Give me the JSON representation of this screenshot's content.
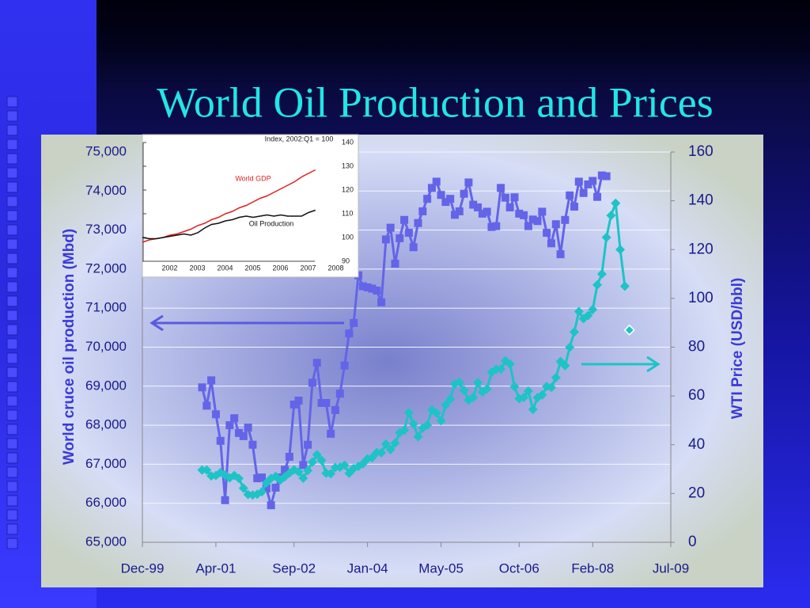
{
  "chart_data": [
    {
      "type": "line",
      "title": "World Oil Production and Prices",
      "ylabel": "World cruce oil production (Mbd)",
      "y2label": "WTI Price (USD/bbl)",
      "xlim": [
        "1999-12",
        "2009-07"
      ],
      "xticks": [
        {
          "value": "1999-12",
          "label": "Dec-99"
        },
        {
          "value": "2001-04",
          "label": "Apr-01"
        },
        {
          "value": "2002-09",
          "label": "Sep-02"
        },
        {
          "value": "2004-01",
          "label": "Jan-04"
        },
        {
          "value": "2005-05",
          "label": "May-05"
        },
        {
          "value": "2006-10",
          "label": "Oct-06"
        },
        {
          "value": "2008-02",
          "label": "Feb-08"
        },
        {
          "value": "2009-07",
          "label": "Jul-09"
        }
      ],
      "ylim": [
        65000,
        75000
      ],
      "yticks": [
        {
          "value": 65000,
          "label": "65,000"
        },
        {
          "value": 66000,
          "label": "66,000"
        },
        {
          "value": 67000,
          "label": "67,000"
        },
        {
          "value": 68000,
          "label": "68,000"
        },
        {
          "value": 69000,
          "label": "69,000"
        },
        {
          "value": 70000,
          "label": "70,000"
        },
        {
          "value": 71000,
          "label": "71,000"
        },
        {
          "value": 72000,
          "label": "72,000"
        },
        {
          "value": 73000,
          "label": "73,000"
        },
        {
          "value": 74000,
          "label": "74,000"
        },
        {
          "value": 75000,
          "label": "75,000"
        }
      ],
      "y2lim": [
        0,
        160
      ],
      "y2ticks": [
        0,
        20,
        40,
        60,
        80,
        100,
        120,
        140,
        160
      ],
      "grid": true,
      "x": [
        "2001-01",
        "2001-02",
        "2001-03",
        "2001-04",
        "2001-05",
        "2001-06",
        "2001-07",
        "2001-08",
        "2001-09",
        "2001-10",
        "2001-11",
        "2001-12",
        "2002-01",
        "2002-02",
        "2002-03",
        "2002-04",
        "2002-05",
        "2002-06",
        "2002-07",
        "2002-08",
        "2002-09",
        "2002-10",
        "2002-11",
        "2002-12",
        "2003-01",
        "2003-02",
        "2003-03",
        "2003-04",
        "2003-05",
        "2003-06",
        "2003-07",
        "2003-08",
        "2003-09",
        "2003-10",
        "2003-11",
        "2003-12",
        "2004-01",
        "2004-02",
        "2004-03",
        "2004-04",
        "2004-05",
        "2004-06",
        "2004-07",
        "2004-08",
        "2004-09",
        "2004-10",
        "2004-11",
        "2004-12",
        "2005-01",
        "2005-02",
        "2005-03",
        "2005-04",
        "2005-05",
        "2005-06",
        "2005-07",
        "2005-08",
        "2005-09",
        "2005-10",
        "2005-11",
        "2005-12",
        "2006-01",
        "2006-02",
        "2006-03",
        "2006-04",
        "2006-05",
        "2006-06",
        "2006-07",
        "2006-08",
        "2006-09",
        "2006-10",
        "2006-11",
        "2006-12",
        "2007-01",
        "2007-02",
        "2007-03",
        "2007-04",
        "2007-05",
        "2007-06",
        "2007-07",
        "2007-08",
        "2007-09",
        "2007-10",
        "2007-11",
        "2007-12",
        "2008-01",
        "2008-02",
        "2008-03",
        "2008-04",
        "2008-05",
        "2008-06",
        "2008-07",
        "2008-08",
        "2008-09"
      ],
      "series": [
        {
          "color": "#6464e8",
          "marker": "square",
          "values": [
            68970,
            68500,
            69150,
            68280,
            67600,
            66080,
            68000,
            68180,
            67800,
            67720,
            67940,
            67500,
            66640,
            66660,
            66380,
            65950,
            66400,
            66660,
            66860,
            67190,
            68530,
            68630,
            66980,
            67500,
            69090,
            69600,
            68570,
            68570,
            67780,
            68390,
            68810,
            69530,
            70350,
            70620,
            71840,
            71560,
            71530,
            71500,
            71450,
            71150,
            72760,
            73060,
            72140,
            72790,
            73260,
            72930,
            72560,
            73180,
            73480,
            73800,
            74080,
            74240,
            73900,
            73720,
            73800,
            73390,
            73480,
            73930,
            74220,
            73650,
            73580,
            73420,
            73470,
            73080,
            73100,
            74080,
            73830,
            73580,
            73840,
            73420,
            73380,
            73100,
            73270,
            73230,
            73470,
            72930,
            72660,
            73150,
            72380,
            73260,
            73890,
            73600,
            74240,
            73950,
            74170,
            74260,
            73850,
            74400,
            74380,
            null,
            null,
            null,
            null
          ]
        },
        {
          "color": "#1ec3c6",
          "marker": "diamond",
          "axis": "y2",
          "values": [
            29.6,
            29.6,
            27.2,
            27.4,
            28.6,
            27.6,
            26.4,
            27.4,
            26.2,
            22.2,
            19.6,
            19.4,
            19.7,
            20.7,
            24.4,
            26.2,
            27.0,
            25.5,
            26.9,
            28.4,
            29.7,
            28.9,
            26.3,
            29.4,
            32.9,
            35.9,
            33.6,
            28.3,
            28.1,
            30.7,
            30.8,
            31.6,
            28.3,
            30.3,
            31.1,
            32.2,
            34.3,
            34.7,
            36.8,
            36.7,
            40.3,
            38.0,
            40.7,
            44.9,
            46.0,
            53.1,
            48.5,
            43.3,
            46.8,
            48.0,
            54.3,
            53.0,
            49.8,
            56.3,
            58.7,
            64.9,
            65.6,
            62.3,
            58.3,
            59.4,
            65.5,
            61.6,
            62.9,
            69.7,
            70.9,
            71.0,
            74.4,
            73.1,
            63.8,
            58.9,
            59.4,
            62.0,
            54.5,
            59.3,
            60.4,
            63.9,
            63.5,
            67.5,
            74.1,
            72.4,
            79.9,
            86.2,
            94.6,
            91.7,
            93.0,
            95.4,
            105.5,
            110,
            125,
            134,
            139,
            120,
            105
          ]
        },
        {
          "color": "#1ec3c6",
          "marker": "diamond-outline",
          "axis": "y2",
          "line": false,
          "x": [
            "2008-10"
          ],
          "values": [
            87
          ]
        }
      ]
    },
    {
      "type": "line",
      "annotation": "Index, 2002:Q1 = 100",
      "xlim": [
        2001.5,
        2008.3
      ],
      "xticks": [
        2002,
        2003,
        2004,
        2005,
        2006,
        2007,
        2008
      ],
      "ylim": [
        90,
        140
      ],
      "yticks": [
        90,
        100,
        110,
        120,
        130,
        140
      ],
      "x": [
        2001.5,
        2001.75,
        2002,
        2002.25,
        2002.5,
        2002.75,
        2003,
        2003.25,
        2003.5,
        2003.75,
        2004,
        2004.25,
        2004.5,
        2004.75,
        2005,
        2005.25,
        2005.5,
        2005.75,
        2006,
        2006.25,
        2006.5,
        2006.75,
        2007,
        2007.25,
        2007.5,
        2007.75
      ],
      "series": [
        {
          "name": "World GDP",
          "color": "#e02020",
          "values": [
            98,
            99,
            99.5,
            100,
            101,
            101.5,
            102.5,
            103.5,
            105,
            106,
            107.5,
            108.5,
            110,
            111,
            112.5,
            113.5,
            115,
            116.5,
            117.5,
            119,
            120.5,
            122,
            123.5,
            125.5,
            127,
            128.5
          ]
        },
        {
          "name": "Oil Production",
          "color": "#111111",
          "values": [
            100,
            99.5,
            99.5,
            100,
            100.5,
            101,
            101.5,
            101,
            102,
            104,
            105.5,
            106,
            107,
            107.5,
            108.5,
            109,
            108.5,
            109,
            109.5,
            109,
            109.5,
            109,
            109,
            109,
            110.5,
            111.5
          ]
        }
      ]
    }
  ]
}
